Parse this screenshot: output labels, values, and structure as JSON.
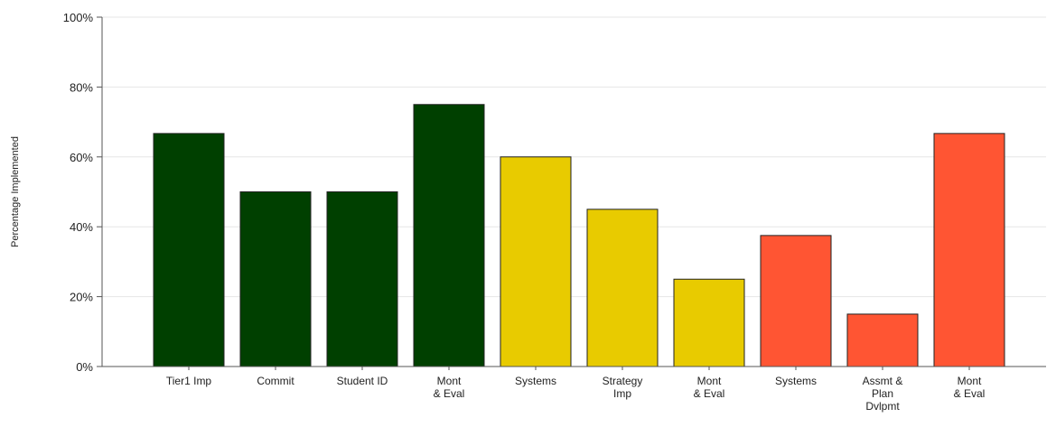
{
  "chart_data": {
    "type": "bar",
    "ylabel": "Percentage Implemented",
    "xlabel": "",
    "ylim": [
      0,
      100
    ],
    "y_ticks": [
      {
        "value": 0,
        "label": "0%"
      },
      {
        "value": 20,
        "label": "20%"
      },
      {
        "value": 40,
        "label": "40%"
      },
      {
        "value": 60,
        "label": "60%"
      },
      {
        "value": 80,
        "label": "80%"
      },
      {
        "value": 100,
        "label": "100%"
      }
    ],
    "grid": true,
    "legend": "none",
    "bars": [
      {
        "label": [
          "Tier1 Imp"
        ],
        "value": 66.7,
        "color": "#004000"
      },
      {
        "label": [
          "Commit"
        ],
        "value": 50,
        "color": "#004000"
      },
      {
        "label": [
          "Student ID"
        ],
        "value": 50,
        "color": "#004000"
      },
      {
        "label": [
          "Mont",
          "& Eval"
        ],
        "value": 75,
        "color": "#004000"
      },
      {
        "label": [
          "Systems"
        ],
        "value": 60,
        "color": "#E8CB00"
      },
      {
        "label": [
          "Strategy",
          "Imp"
        ],
        "value": 45,
        "color": "#E8CB00"
      },
      {
        "label": [
          "Mont",
          "& Eval"
        ],
        "value": 25,
        "color": "#E8CB00"
      },
      {
        "label": [
          "Systems"
        ],
        "value": 37.5,
        "color": "#FF5533"
      },
      {
        "label": [
          "Assmt &",
          "Plan",
          "Dvlpmt"
        ],
        "value": 15,
        "color": "#FF5533"
      },
      {
        "label": [
          "Mont",
          "& Eval"
        ],
        "value": 66.7,
        "color": "#FF5533"
      }
    ]
  }
}
